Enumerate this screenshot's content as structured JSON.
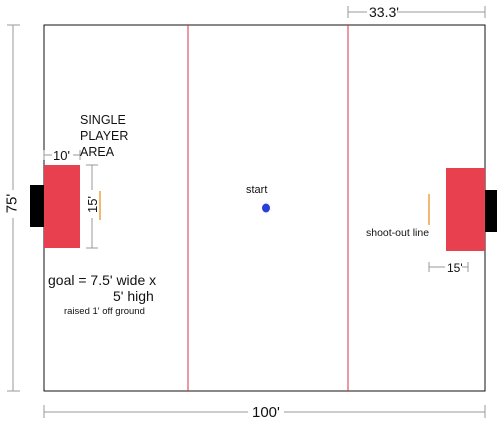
{
  "dimensions": {
    "length": "100'",
    "width": "75'",
    "zone_depth": "33.3'",
    "single_player_area_width": "10'",
    "single_player_area_depth": "15'",
    "goal_area_depth_right": "15'"
  },
  "labels": {
    "single_player_area": [
      "SINGLE",
      "PLAYER",
      "AREA"
    ],
    "start": "start",
    "shoot_out_line": "shoot-out line",
    "goal_spec_line1": "goal = 7.5' wide x",
    "goal_spec_line2": "5' high",
    "goal_spec_note": "raised 1' off ground"
  },
  "colors": {
    "field_border": "#111111",
    "zone_lines": "#d9304f",
    "single_player_area": "#e8404f",
    "goal": "#000000",
    "shoot_out_line": "#f0a040",
    "start_marker": "#2a3fd8",
    "dimension_lines": "#999999"
  }
}
